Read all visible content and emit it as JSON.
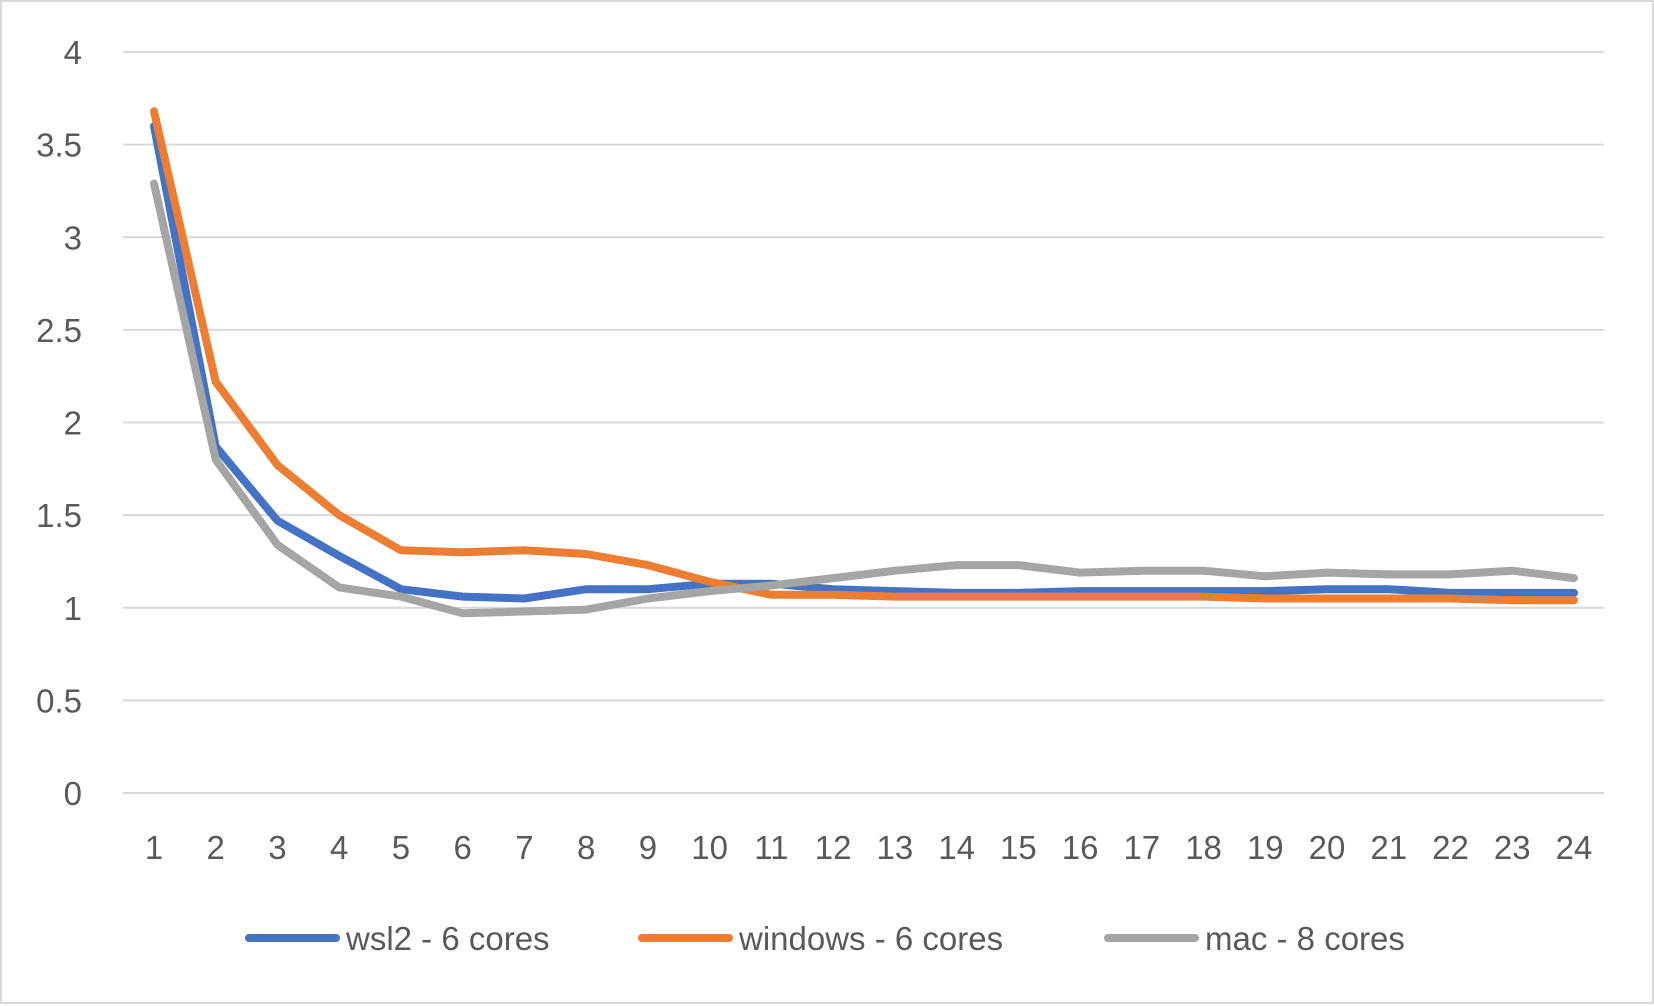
{
  "chart_data": {
    "type": "line",
    "title": "",
    "xlabel": "",
    "ylabel": "",
    "x": [
      1,
      2,
      3,
      4,
      5,
      6,
      7,
      8,
      9,
      10,
      11,
      12,
      13,
      14,
      15,
      16,
      17,
      18,
      19,
      20,
      21,
      22,
      23,
      24
    ],
    "x_tick_labels": [
      "1",
      "2",
      "3",
      "4",
      "5",
      "6",
      "7",
      "8",
      "9",
      "10",
      "11",
      "12",
      "13",
      "14",
      "15",
      "16",
      "17",
      "18",
      "19",
      "20",
      "21",
      "22",
      "23",
      "24"
    ],
    "ylim": [
      0,
      4
    ],
    "y_tick_labels": [
      "0",
      "0.5",
      "1",
      "1.5",
      "2",
      "2.5",
      "3",
      "3.5",
      "4"
    ],
    "grid": "horizontal",
    "legend_position": "bottom",
    "series": [
      {
        "name": "wsl2 - 6 cores",
        "color": "#4472c4",
        "values": [
          3.6,
          1.87,
          1.47,
          1.28,
          1.1,
          1.06,
          1.05,
          1.1,
          1.1,
          1.13,
          1.13,
          1.1,
          1.09,
          1.08,
          1.08,
          1.09,
          1.09,
          1.09,
          1.09,
          1.1,
          1.1,
          1.08,
          1.08,
          1.08
        ]
      },
      {
        "name": "windows - 6 cores",
        "color": "#ed7d31",
        "values": [
          3.68,
          2.22,
          1.77,
          1.5,
          1.31,
          1.3,
          1.31,
          1.29,
          1.23,
          1.14,
          1.07,
          1.07,
          1.06,
          1.06,
          1.06,
          1.06,
          1.06,
          1.06,
          1.05,
          1.05,
          1.05,
          1.05,
          1.04,
          1.04
        ]
      },
      {
        "name": "mac - 8 cores",
        "color": "#a5a5a5",
        "values": [
          3.29,
          1.8,
          1.34,
          1.11,
          1.06,
          0.97,
          0.98,
          0.99,
          1.05,
          1.09,
          1.12,
          1.16,
          1.2,
          1.23,
          1.23,
          1.19,
          1.2,
          1.2,
          1.17,
          1.19,
          1.18,
          1.18,
          1.2,
          1.16
        ]
      }
    ]
  }
}
